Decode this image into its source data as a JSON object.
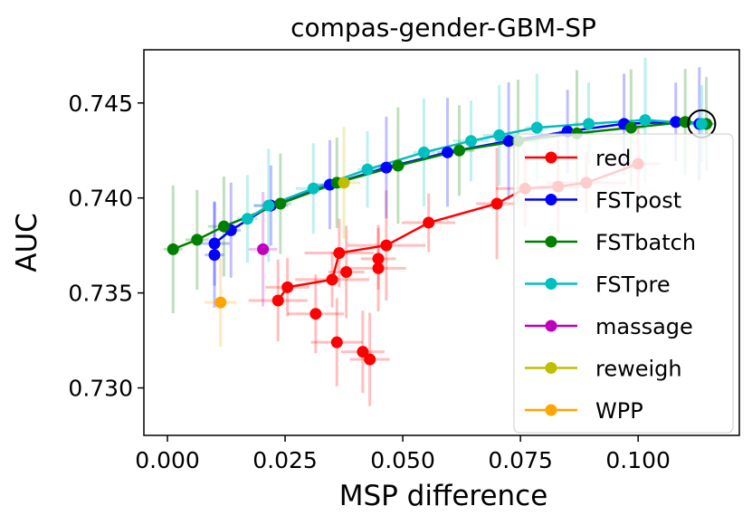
{
  "chart_data": {
    "type": "line",
    "title": "compas-gender-GBM-SP",
    "xlabel": "MSP difference",
    "ylabel": "AUC",
    "xlim": [
      -0.005,
      0.1215
    ],
    "ylim": [
      0.7275,
      0.7478
    ],
    "xticks": [
      0.0,
      0.025,
      0.05,
      0.075,
      0.1
    ],
    "xtick_labels": [
      "0.000",
      "0.025",
      "0.050",
      "0.075",
      "0.100"
    ],
    "yticks": [
      0.73,
      0.735,
      0.74,
      0.745
    ],
    "ytick_labels": [
      "0.730",
      "0.735",
      "0.740",
      "0.745"
    ],
    "legend_position": "right",
    "highlight_point": {
      "name": "selected",
      "x": 0.1135,
      "y": 0.7439
    },
    "series": [
      {
        "name": "red",
        "color": "#ff0000",
        "connect": true,
        "points": [
          [
            0.0235,
            0.7346
          ],
          [
            0.0255,
            0.7353
          ],
          [
            0.0315,
            0.7339
          ],
          [
            0.035,
            0.7357
          ],
          [
            0.036,
            0.7324
          ],
          [
            0.0365,
            0.7371
          ],
          [
            0.038,
            0.7361
          ],
          [
            0.0415,
            0.7319
          ],
          [
            0.043,
            0.7315
          ],
          [
            0.0448,
            0.7363
          ],
          [
            0.0448,
            0.7368
          ],
          [
            0.0465,
            0.7375
          ],
          [
            0.0555,
            0.7387
          ],
          [
            0.07,
            0.7397
          ],
          [
            0.076,
            0.7405
          ],
          [
            0.083,
            0.7406
          ],
          [
            0.089,
            0.7408
          ],
          [
            0.1,
            0.7418
          ]
        ],
        "connect_order": [
          [
            0.0235,
            0.7346
          ],
          [
            0.0255,
            0.7353
          ],
          [
            0.035,
            0.7357
          ],
          [
            0.0365,
            0.7371
          ],
          [
            0.0465,
            0.7375
          ],
          [
            0.0555,
            0.7387
          ],
          [
            0.07,
            0.7397
          ],
          [
            0.076,
            0.7405
          ],
          [
            0.083,
            0.7406
          ],
          [
            0.089,
            0.7408
          ],
          [
            0.1,
            0.7418
          ]
        ]
      },
      {
        "name": "FSTpost",
        "color": "#0000ff",
        "connect": true,
        "points": [
          [
            0.01,
            0.737
          ],
          [
            0.01,
            0.7376
          ],
          [
            0.0135,
            0.7383
          ],
          [
            0.022,
            0.7396
          ],
          [
            0.0345,
            0.7407
          ],
          [
            0.0465,
            0.7416
          ],
          [
            0.0595,
            0.7424
          ],
          [
            0.0725,
            0.743
          ],
          [
            0.085,
            0.7435
          ],
          [
            0.097,
            0.7439
          ],
          [
            0.108,
            0.744
          ],
          [
            0.113,
            0.7439
          ]
        ]
      },
      {
        "name": "FSTbatch",
        "color": "#008000",
        "connect": true,
        "points": [
          [
            0.0012,
            0.7373
          ],
          [
            0.0063,
            0.7378
          ],
          [
            0.012,
            0.7385
          ],
          [
            0.024,
            0.7397
          ],
          [
            0.036,
            0.7408
          ],
          [
            0.049,
            0.7417
          ],
          [
            0.062,
            0.7425
          ],
          [
            0.0745,
            0.743
          ],
          [
            0.087,
            0.7434
          ],
          [
            0.0985,
            0.7437
          ],
          [
            0.11,
            0.744
          ],
          [
            0.1145,
            0.7439
          ]
        ]
      },
      {
        "name": "FSTpre",
        "color": "#00bfbf",
        "connect": true,
        "points": [
          [
            0.017,
            0.7389
          ],
          [
            0.0215,
            0.7396
          ],
          [
            0.031,
            0.7405
          ],
          [
            0.0425,
            0.7415
          ],
          [
            0.0545,
            0.7424
          ],
          [
            0.0645,
            0.743
          ],
          [
            0.0705,
            0.7433
          ],
          [
            0.0785,
            0.7437
          ],
          [
            0.0895,
            0.7439
          ],
          [
            0.1015,
            0.7441
          ],
          [
            0.1135,
            0.7439
          ]
        ]
      },
      {
        "name": "massage",
        "color": "#bf00bf",
        "connect": false,
        "points": [
          [
            0.0203,
            0.7373
          ]
        ]
      },
      {
        "name": "reweigh",
        "color": "#bfbf00",
        "connect": false,
        "points": [
          [
            0.0375,
            0.7408
          ]
        ]
      },
      {
        "name": "WPP",
        "color": "#ffa500",
        "connect": false,
        "points": [
          [
            0.0113,
            0.7345
          ]
        ]
      }
    ]
  }
}
